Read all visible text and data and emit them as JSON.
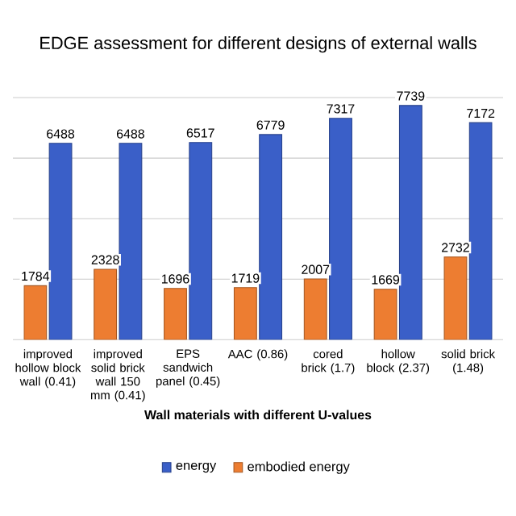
{
  "chart_data": {
    "type": "bar",
    "title": "EDGE assessment for different designs of external walls",
    "xlabel": "Wall materials with different U-values",
    "categories": [
      "improved hollow block wall (0.41)",
      "improved solid brick wall 150 mm (0.41)",
      "EPS sandwich panel (0.45)",
      "AAC (0.86)",
      "cored brick (1.7)",
      "hollow block (2.37)",
      "solid brick (1.48)"
    ],
    "series": [
      {
        "name": "energy",
        "color": "#3a5fc8",
        "values": [
          6488,
          6488,
          6517,
          6779,
          7317,
          7739,
          7172
        ]
      },
      {
        "name": "embodied energy",
        "color": "#ed7d31",
        "values": [
          1784,
          2328,
          1696,
          1719,
          2007,
          1669,
          2732
        ]
      }
    ],
    "yticks": [
      {
        "value": 0,
        "label": null
      },
      {
        "value": 2000,
        "label": null
      },
      {
        "value": 4000,
        "label": null
      },
      {
        "value": 6000,
        "label": null
      },
      {
        "value": 8000,
        "label": null
      }
    ],
    "grid": "y",
    "legend": "bottom",
    "data_labels": true
  }
}
